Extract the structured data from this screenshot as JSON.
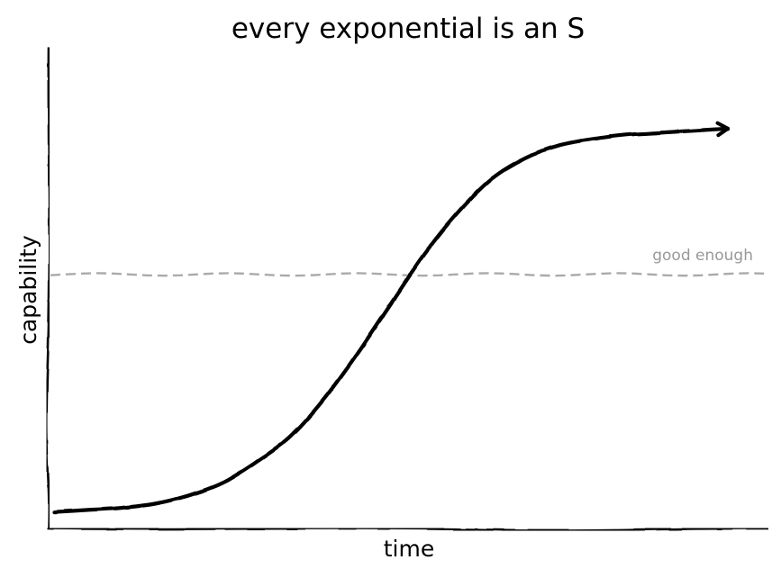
{
  "chart_data": {
    "type": "line",
    "title": "every exponential is an S",
    "xlabel": "time",
    "ylabel": "capability",
    "xlim": [
      0,
      100
    ],
    "ylim": [
      0,
      100
    ],
    "grid": false,
    "legend": "none",
    "series": [
      {
        "x": [
          0,
          5,
          10,
          15,
          20,
          25,
          30,
          35,
          40,
          45,
          50,
          55,
          60,
          65,
          70,
          75,
          80,
          85,
          90,
          95,
          100
        ],
        "y": [
          2,
          2.5,
          3,
          4,
          6,
          9,
          14,
          20,
          29,
          40,
          52,
          64,
          74,
          82,
          87,
          90,
          91.5,
          92.5,
          93,
          93.5,
          94
        ],
        "style": "solid",
        "color": "#000000",
        "arrow_end": true
      }
    ],
    "reference_lines": [
      {
        "orientation": "horizontal",
        "y": 59,
        "label": "good enough",
        "style": "dashed",
        "color": "#aaaaaa"
      }
    ]
  }
}
